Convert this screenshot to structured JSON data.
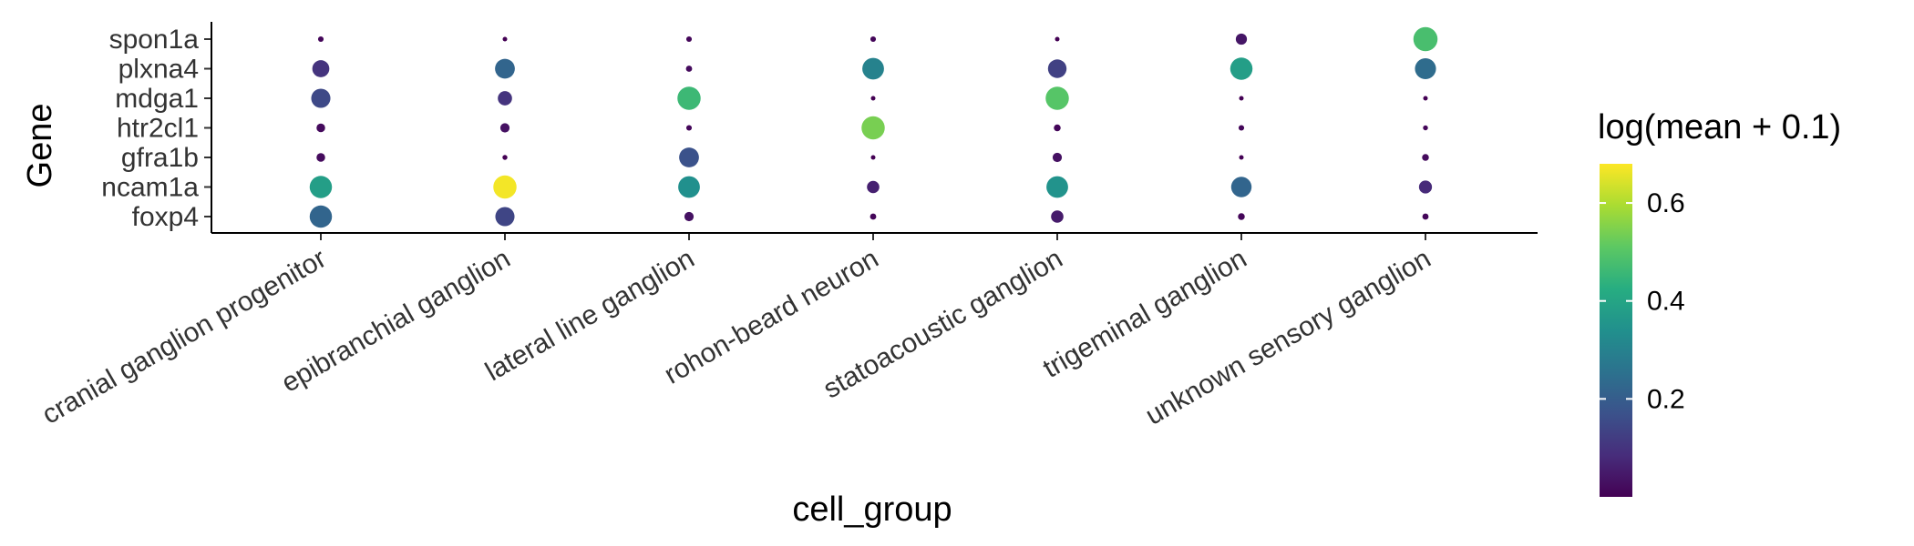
{
  "chart_data": {
    "type": "scatter",
    "subtype": "dot-plot",
    "xlabel": "cell_group",
    "ylabel": "Gene",
    "categories_x": [
      "cranial ganglion progenitor",
      "epibranchial ganglion",
      "lateral line ganglion",
      "rohon-beard neuron",
      "statoacoustic ganglion",
      "trigeminal ganglion",
      "unknown sensory ganglion"
    ],
    "categories_y": [
      "spon1a",
      "plxna4",
      "mdga1",
      "htr2cl1",
      "gfra1b",
      "ncam1a",
      "foxp4"
    ],
    "color_legend": {
      "title": "log(mean + 0.1)",
      "colormap": "viridis",
      "range": [
        0.0,
        0.68
      ],
      "ticks": [
        "0.2",
        "0.4",
        "0.6"
      ],
      "tick_values": [
        0.2,
        0.4,
        0.6
      ]
    },
    "points": [
      {
        "x": "cranial ganglion progenitor",
        "y": "spon1a",
        "value": 0.01,
        "size": 0.18
      },
      {
        "x": "cranial ganglion progenitor",
        "y": "plxna4",
        "value": 0.1,
        "size": 0.55
      },
      {
        "x": "cranial ganglion progenitor",
        "y": "mdga1",
        "value": 0.15,
        "size": 0.62
      },
      {
        "x": "cranial ganglion progenitor",
        "y": "htr2cl1",
        "value": 0.02,
        "size": 0.28
      },
      {
        "x": "cranial ganglion progenitor",
        "y": "gfra1b",
        "value": 0.02,
        "size": 0.28
      },
      {
        "x": "cranial ganglion progenitor",
        "y": "ncam1a",
        "value": 0.38,
        "size": 0.72
      },
      {
        "x": "cranial ganglion progenitor",
        "y": "foxp4",
        "value": 0.22,
        "size": 0.72
      },
      {
        "x": "epibranchial ganglion",
        "y": "spon1a",
        "value": 0.0,
        "size": 0.08
      },
      {
        "x": "epibranchial ganglion",
        "y": "plxna4",
        "value": 0.22,
        "size": 0.64
      },
      {
        "x": "epibranchial ganglion",
        "y": "mdga1",
        "value": 0.1,
        "size": 0.46
      },
      {
        "x": "epibranchial ganglion",
        "y": "htr2cl1",
        "value": 0.03,
        "size": 0.3
      },
      {
        "x": "epibranchial ganglion",
        "y": "gfra1b",
        "value": 0.0,
        "size": 0.16
      },
      {
        "x": "epibranchial ganglion",
        "y": "ncam1a",
        "value": 0.67,
        "size": 0.75
      },
      {
        "x": "epibranchial ganglion",
        "y": "foxp4",
        "value": 0.14,
        "size": 0.62
      },
      {
        "x": "lateral line ganglion",
        "y": "spon1a",
        "value": 0.01,
        "size": 0.18
      },
      {
        "x": "lateral line ganglion",
        "y": "plxna4",
        "value": 0.02,
        "size": 0.2
      },
      {
        "x": "lateral line ganglion",
        "y": "mdga1",
        "value": 0.46,
        "size": 0.75
      },
      {
        "x": "lateral line ganglion",
        "y": "htr2cl1",
        "value": 0.01,
        "size": 0.18
      },
      {
        "x": "lateral line ganglion",
        "y": "gfra1b",
        "value": 0.17,
        "size": 0.64
      },
      {
        "x": "lateral line ganglion",
        "y": "ncam1a",
        "value": 0.34,
        "size": 0.7
      },
      {
        "x": "lateral line ganglion",
        "y": "foxp4",
        "value": 0.03,
        "size": 0.3
      },
      {
        "x": "rohon-beard neuron",
        "y": "spon1a",
        "value": 0.01,
        "size": 0.18
      },
      {
        "x": "rohon-beard neuron",
        "y": "plxna4",
        "value": 0.3,
        "size": 0.7
      },
      {
        "x": "rohon-beard neuron",
        "y": "mdga1",
        "value": 0.0,
        "size": 0.1
      },
      {
        "x": "rohon-beard neuron",
        "y": "htr2cl1",
        "value": 0.54,
        "size": 0.75
      },
      {
        "x": "rohon-beard neuron",
        "y": "gfra1b",
        "value": 0.0,
        "size": 0.04
      },
      {
        "x": "rohon-beard neuron",
        "y": "ncam1a",
        "value": 0.06,
        "size": 0.4
      },
      {
        "x": "rohon-beard neuron",
        "y": "foxp4",
        "value": 0.01,
        "size": 0.2
      },
      {
        "x": "statoacoustic ganglion",
        "y": "spon1a",
        "value": 0.0,
        "size": 0.1
      },
      {
        "x": "statoacoustic ganglion",
        "y": "plxna4",
        "value": 0.13,
        "size": 0.6
      },
      {
        "x": "statoacoustic ganglion",
        "y": "mdga1",
        "value": 0.5,
        "size": 0.75
      },
      {
        "x": "statoacoustic ganglion",
        "y": "htr2cl1",
        "value": 0.01,
        "size": 0.22
      },
      {
        "x": "statoacoustic ganglion",
        "y": "gfra1b",
        "value": 0.03,
        "size": 0.3
      },
      {
        "x": "statoacoustic ganglion",
        "y": "ncam1a",
        "value": 0.35,
        "size": 0.7
      },
      {
        "x": "statoacoustic ganglion",
        "y": "foxp4",
        "value": 0.05,
        "size": 0.4
      },
      {
        "x": "trigeminal ganglion",
        "y": "spon1a",
        "value": 0.04,
        "size": 0.36
      },
      {
        "x": "trigeminal ganglion",
        "y": "plxna4",
        "value": 0.38,
        "size": 0.72
      },
      {
        "x": "trigeminal ganglion",
        "y": "mdga1",
        "value": 0.0,
        "size": 0.14
      },
      {
        "x": "trigeminal ganglion",
        "y": "htr2cl1",
        "value": 0.01,
        "size": 0.18
      },
      {
        "x": "trigeminal ganglion",
        "y": "gfra1b",
        "value": 0.0,
        "size": 0.05
      },
      {
        "x": "trigeminal ganglion",
        "y": "ncam1a",
        "value": 0.22,
        "size": 0.66
      },
      {
        "x": "trigeminal ganglion",
        "y": "foxp4",
        "value": 0.01,
        "size": 0.22
      },
      {
        "x": "unknown sensory ganglion",
        "y": "spon1a",
        "value": 0.48,
        "size": 0.78
      },
      {
        "x": "unknown sensory ganglion",
        "y": "plxna4",
        "value": 0.24,
        "size": 0.68
      },
      {
        "x": "unknown sensory ganglion",
        "y": "mdga1",
        "value": 0.0,
        "size": 0.08
      },
      {
        "x": "unknown sensory ganglion",
        "y": "htr2cl1",
        "value": 0.01,
        "size": 0.16
      },
      {
        "x": "unknown sensory ganglion",
        "y": "gfra1b",
        "value": 0.02,
        "size": 0.22
      },
      {
        "x": "unknown sensory ganglion",
        "y": "ncam1a",
        "value": 0.08,
        "size": 0.42
      },
      {
        "x": "unknown sensory ganglion",
        "y": "foxp4",
        "value": 0.01,
        "size": 0.2
      }
    ]
  }
}
